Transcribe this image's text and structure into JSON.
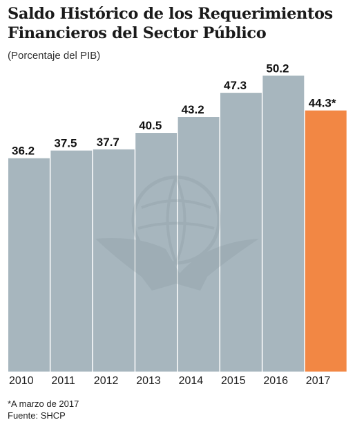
{
  "title_line1": "Saldo Histórico de los Requerimientos",
  "title_line2": "Financieros del Sector Público",
  "subtitle": "(Porcentaje del PIB)",
  "footnote": "*A marzo de 2017",
  "source": "Fuente: SHCP",
  "colors": {
    "bar": "#a7b6be",
    "highlight": "#f28744",
    "watermark": "#97a6ae"
  },
  "chart_data": {
    "type": "bar",
    "categories": [
      "2010",
      "2011",
      "2012",
      "2013",
      "2014",
      "2015",
      "2016",
      "2017"
    ],
    "values": [
      36.2,
      37.5,
      37.7,
      40.5,
      43.2,
      47.3,
      50.2,
      44.3
    ],
    "value_labels": [
      "36.2",
      "37.5",
      "37.7",
      "40.5",
      "43.2",
      "47.3",
      "50.2",
      "44.3*"
    ],
    "highlight_index": 7,
    "ylim": [
      0,
      53.3
    ],
    "grid": false,
    "legend": "none",
    "title": "Saldo Histórico de los Requerimientos Financieros del Sector Público",
    "ylabel": "",
    "xlabel": ""
  }
}
